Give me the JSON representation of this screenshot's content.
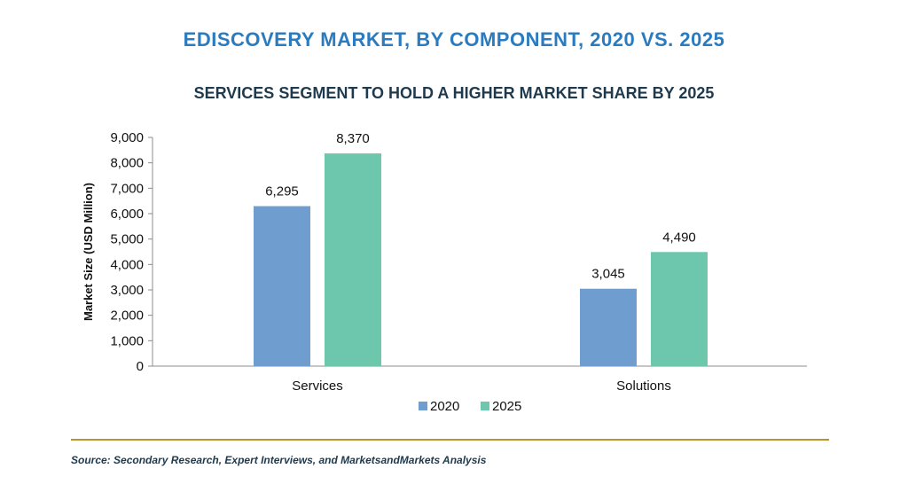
{
  "header": {
    "title": "EDISCOVERY MARKET, BY COMPONENT, 2020 VS. 2025",
    "subtitle": "SERVICES SEGMENT TO HOLD A HIGHER MARKET SHARE BY 2025"
  },
  "footer": {
    "source": "Source: Secondary Research, Expert Interviews, and MarketsandMarkets Analysis"
  },
  "chart_data": {
    "type": "bar",
    "title": "EDISCOVERY MARKET, BY COMPONENT, 2020 VS. 2025",
    "subtitle": "SERVICES SEGMENT TO HOLD A HIGHER MARKET SHARE BY 2025",
    "categories": [
      "Services",
      "Solutions"
    ],
    "series": [
      {
        "name": "2020",
        "values": [
          6295,
          3045
        ],
        "labels": [
          "6,295",
          "3,045"
        ],
        "color": "#6f9dcf"
      },
      {
        "name": "2025",
        "values": [
          8370,
          4490
        ],
        "labels": [
          "8,370",
          "4,490"
        ],
        "color": "#6cc7ad"
      }
    ],
    "xlabel": "",
    "ylabel": "Market Size (USD Million)",
    "ylim": [
      0,
      9000
    ],
    "yticks": [
      0,
      1000,
      2000,
      3000,
      4000,
      5000,
      6000,
      7000,
      8000,
      9000
    ],
    "ytick_labels": [
      "0",
      "1,000",
      "2,000",
      "3,000",
      "4,000",
      "5,000",
      "6,000",
      "7,000",
      "8,000",
      "9,000"
    ],
    "grid": false,
    "legend": "bottom-center"
  }
}
